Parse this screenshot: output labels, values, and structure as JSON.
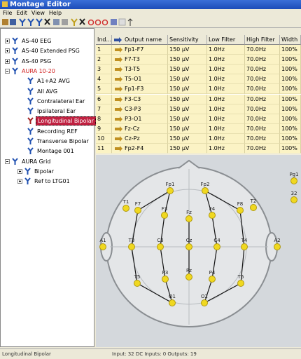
{
  "window": {
    "title": "Montage Editor"
  },
  "menu": [
    "File",
    "Edit",
    "View",
    "Help"
  ],
  "tree": [
    {
      "label": "AS-40 EEG",
      "children": []
    },
    {
      "label": "AS-40 Extended PSG",
      "children": []
    },
    {
      "label": "AS-40 PSG",
      "children": []
    },
    {
      "label": "AURA 10-20",
      "highlight": true,
      "children": [
        {
          "label": "A1+A2 AVG"
        },
        {
          "label": "All AVG"
        },
        {
          "label": "Contralateral Ear"
        },
        {
          "label": "Ipsilateral Ear"
        },
        {
          "label": "Longitudinal Bipolar",
          "selected": true
        },
        {
          "label": "Recording REF"
        },
        {
          "label": "Transverse Bipolar"
        },
        {
          "label": "Montage 001"
        }
      ]
    },
    {
      "label": "AURA Grid",
      "children": [
        {
          "label": "Bipolar",
          "children": []
        },
        {
          "label": "Ref to LTG01",
          "children": []
        }
      ]
    }
  ],
  "table": {
    "columns": [
      "Ind...",
      "Output name",
      "Sensitivity",
      "Low Filter",
      "High Filter",
      "Width"
    ],
    "rows": [
      [
        1,
        "Fp1-F7",
        "150 µV",
        "1.0Hz",
        "70.0Hz",
        "100%"
      ],
      [
        2,
        "F7-T3",
        "150 µV",
        "1.0Hz",
        "70.0Hz",
        "100%"
      ],
      [
        3,
        "T3-T5",
        "150 µV",
        "1.0Hz",
        "70.0Hz",
        "100%"
      ],
      [
        4,
        "T5-O1",
        "150 µV",
        "1.0Hz",
        "70.0Hz",
        "100%"
      ],
      [
        5,
        "Fp1-F3",
        "150 µV",
        "1.0Hz",
        "70.0Hz",
        "100%"
      ],
      [
        6,
        "F3-C3",
        "150 µV",
        "1.0Hz",
        "70.0Hz",
        "100%"
      ],
      [
        7,
        "C3-P3",
        "150 µV",
        "1.0Hz",
        "70.0Hz",
        "100%"
      ],
      [
        8,
        "P3-O1",
        "150 µV",
        "1.0Hz",
        "70.0Hz",
        "100%"
      ],
      [
        9,
        "Fz-Cz",
        "150 µV",
        "1.0Hz",
        "70.0Hz",
        "100%"
      ],
      [
        10,
        "Cz-Pz",
        "150 µV",
        "1.0Hz",
        "70.0Hz",
        "100%"
      ],
      [
        11,
        "Fp2-F4",
        "150 µV",
        "1.0Hz",
        "70.0Hz",
        "100%"
      ]
    ]
  },
  "electrodes": [
    "Fp1",
    "Fp2",
    "F7",
    "F8",
    "T1",
    "T2",
    "F3",
    "Fz",
    "F4",
    "A1",
    "T3",
    "C3",
    "Cz",
    "C4",
    "T4",
    "A2",
    "T5",
    "P3",
    "Pz",
    "P4",
    "T6",
    "O1",
    "O2",
    "Pg1",
    "32"
  ],
  "status": [
    "Longitudinal Bipolar",
    "Input: 32 DC Inputs: 0 Outputs: 19"
  ]
}
